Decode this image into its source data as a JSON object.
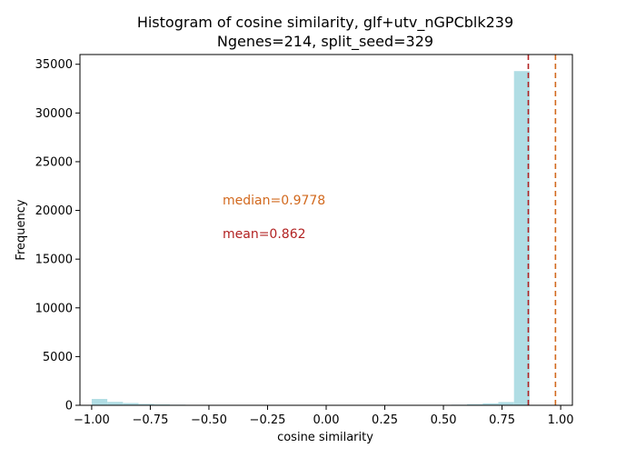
{
  "chart_data": {
    "type": "bar",
    "title_line1": "Histogram of cosine similarity, glf+utv_nGPCblk239",
    "title_line2": "Ngenes=214, split_seed=329",
    "xlabel": "cosine similarity",
    "ylabel": "Frequency",
    "xlim": [
      -1.05,
      1.05
    ],
    "ylim": [
      0,
      36000
    ],
    "xticks": [
      -1.0,
      -0.75,
      -0.5,
      -0.25,
      0.0,
      0.25,
      0.5,
      0.75,
      1.0
    ],
    "xtick_labels": [
      "−1.00",
      "−0.75",
      "−0.50",
      "−0.25",
      "0.00",
      "0.25",
      "0.50",
      "0.75",
      "1.00"
    ],
    "yticks": [
      0,
      5000,
      10000,
      15000,
      20000,
      25000,
      30000,
      35000
    ],
    "ytick_labels": [
      "0",
      "5000",
      "10000",
      "15000",
      "20000",
      "25000",
      "30000",
      "35000"
    ],
    "bin_start": -1.0,
    "bin_width": 0.0667,
    "values": [
      650,
      350,
      230,
      140,
      90,
      60,
      45,
      35,
      30,
      25,
      20,
      18,
      15,
      20,
      15,
      15,
      15,
      20,
      15,
      20,
      25,
      30,
      40,
      60,
      120,
      200,
      330,
      34300
    ],
    "bar_color": "#b0dde4",
    "median": 0.9778,
    "mean": 0.862,
    "median_label": "median=0.9778",
    "mean_label": "mean=0.862",
    "median_color": "#d2691e",
    "mean_color": "#b22222",
    "grid": false,
    "legend": "none"
  }
}
